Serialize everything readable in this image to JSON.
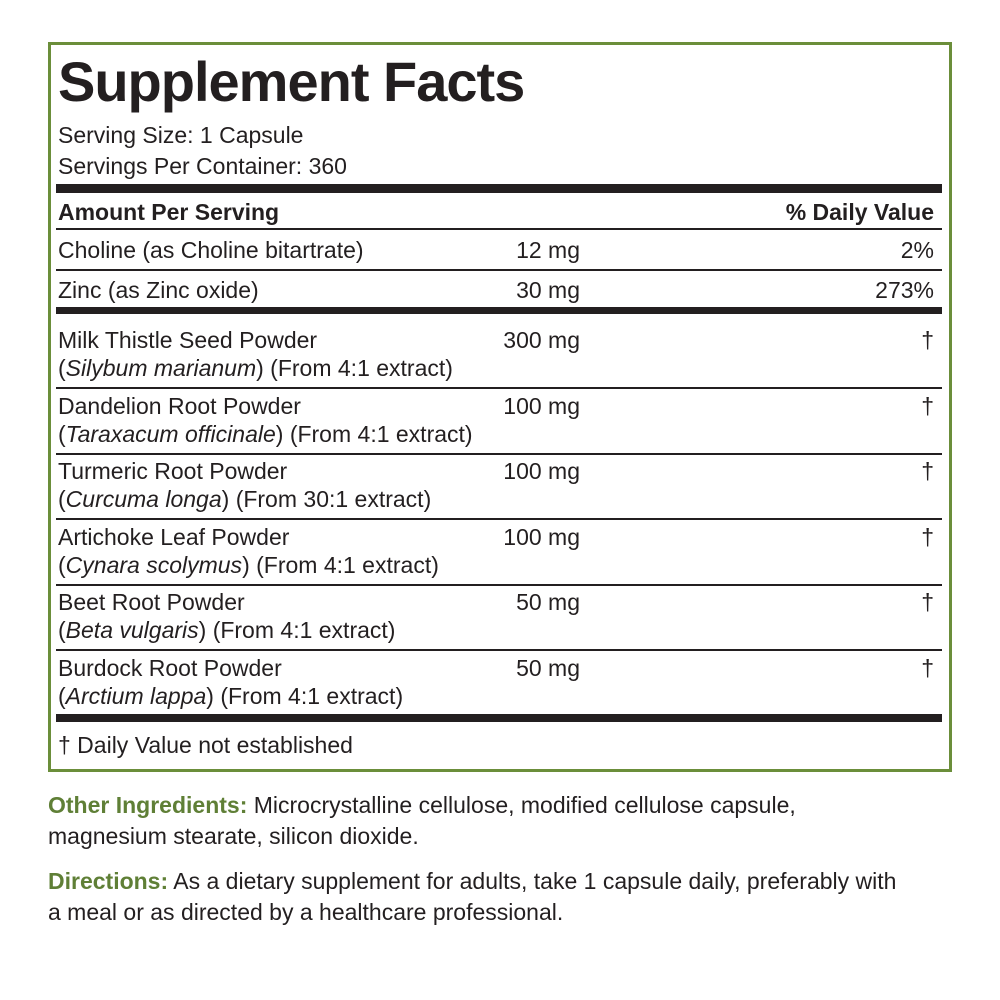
{
  "title": "Supplement Facts",
  "serving_size": "Serving Size: 1 Capsule",
  "servings_per_container": "Servings Per Container: 360",
  "table": {
    "header": {
      "amount": "Amount Per Serving",
      "daily_value": "% Daily Value"
    },
    "nutrients": [
      {
        "name": "Choline (as Choline bitartrate)",
        "amount": "12 mg",
        "dv": "2%"
      },
      {
        "name": "Zinc (as Zinc oxide)",
        "amount": "30 mg",
        "dv": "273%"
      }
    ],
    "ingredients": [
      {
        "name": "Milk Thistle Seed Powder",
        "detail": [
          "(",
          "Silybum marianum",
          ") (From 4:1 extract)"
        ],
        "amount": "300 mg",
        "dv": "†"
      },
      {
        "name": "Dandelion Root Powder",
        "detail": [
          "(",
          "Taraxacum officinale",
          ") (From 4:1 extract)"
        ],
        "amount": "100 mg",
        "dv": "†"
      },
      {
        "name": "Turmeric Root Powder",
        "detail": [
          "(",
          "Curcuma longa",
          ") (From 30:1 extract)"
        ],
        "amount": "100 mg",
        "dv": "†"
      },
      {
        "name": "Artichoke Leaf Powder",
        "detail": [
          "(",
          "Cynara scolymus",
          ") (From 4:1 extract)"
        ],
        "amount": "100 mg",
        "dv": "†"
      },
      {
        "name": "Beet Root Powder",
        "detail": [
          "(",
          "Beta vulgaris",
          ") (From 4:1 extract)"
        ],
        "amount": "50 mg",
        "dv": "†"
      },
      {
        "name": "Burdock Root Powder",
        "detail": [
          "(",
          "Arctium lappa",
          ") (From 4:1 extract)"
        ],
        "amount": "50 mg",
        "dv": "†"
      }
    ],
    "footnote": "† Daily Value not established"
  },
  "other_ingredients": {
    "label": "Other Ingredients:",
    "text": "Microcrystalline cellulose, modified cellulose capsule, magnesium stearate, silicon dioxide."
  },
  "directions": {
    "label": "Directions:",
    "text": "As a dietary supplement for adults, take 1 capsule daily, preferably with a meal or as directed by a healthcare professional."
  }
}
